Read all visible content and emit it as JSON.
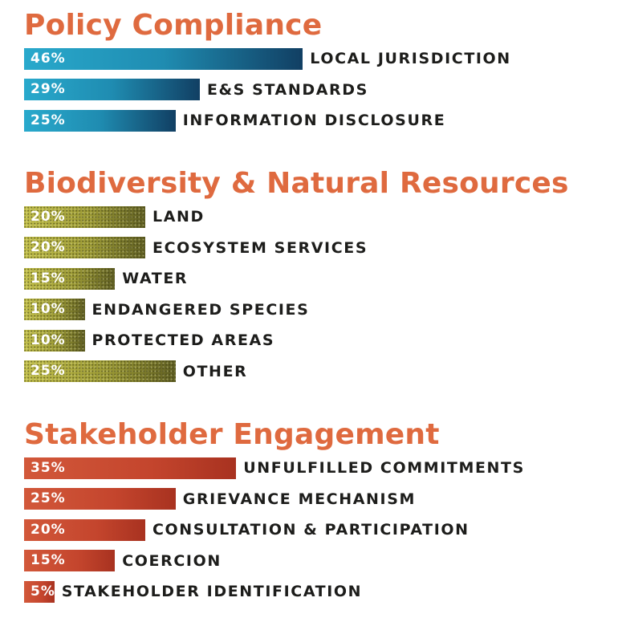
{
  "chart_data": [
    {
      "type": "bar",
      "title": "Policy Compliance",
      "color": "#1f8cb1",
      "categories": [
        "LOCAL JURISDICTION",
        "E&S STANDARDS",
        "INFORMATION DISCLOSURE"
      ],
      "values": [
        46,
        29,
        25
      ],
      "value_labels": [
        "46%",
        "29%",
        "25%"
      ]
    },
    {
      "type": "bar",
      "title": "Biodiversity & Natural Resources",
      "color": "#a9a83a",
      "categories": [
        "LAND",
        "ECOSYSTEM SERVICES",
        "WATER",
        "ENDANGERED SPECIES",
        "PROTECTED AREAS",
        "OTHER"
      ],
      "values": [
        20,
        20,
        15,
        10,
        10,
        25
      ],
      "value_labels": [
        "20%",
        "20%",
        "15%",
        "10%",
        "10%",
        "25%"
      ]
    },
    {
      "type": "bar",
      "title": "Stakeholder Engagement",
      "color": "#c84a30",
      "categories": [
        "UNFULFILLED COMMITMENTS",
        "GRIEVANCE MECHANISM",
        "CONSULTATION & PARTICIPATION",
        "COERCION",
        "STAKEHOLDER IDENTIFICATION"
      ],
      "values": [
        35,
        25,
        20,
        15,
        5
      ],
      "value_labels": [
        "35%",
        "25%",
        "20%",
        "15%",
        "5%"
      ]
    }
  ]
}
